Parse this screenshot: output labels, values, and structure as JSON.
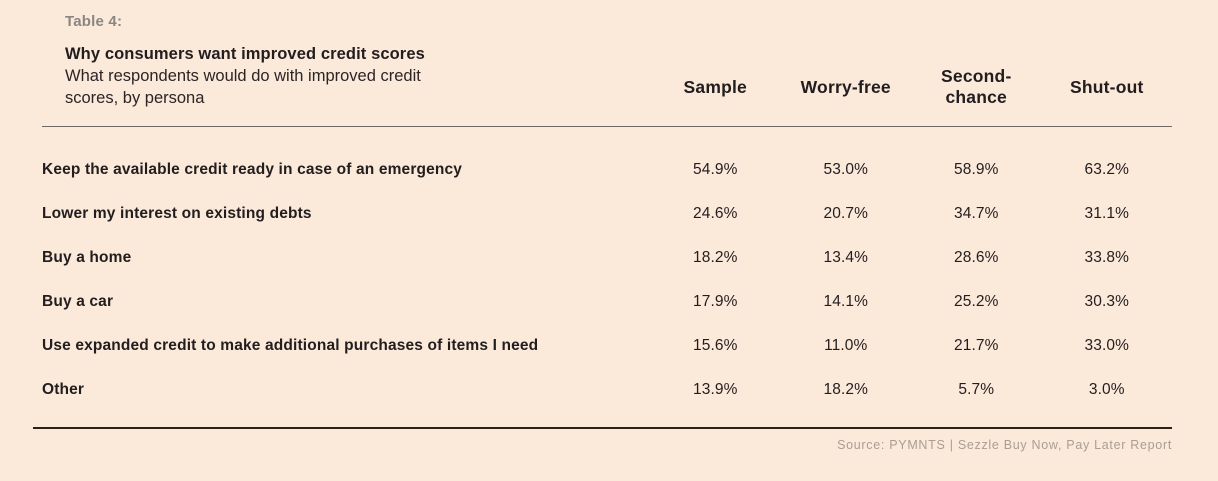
{
  "table": {
    "label": "Table 4:",
    "title": "Why consumers want improved credit scores",
    "subtitle": "What respondents would do with improved credit scores, by persona",
    "columns": [
      "Sample",
      "Worry-free",
      "Second-\nchance",
      "Shut-out"
    ],
    "rows": [
      {
        "label": "Keep the available credit ready in case of an emergency",
        "values": [
          "54.9%",
          "53.0%",
          "58.9%",
          "63.2%"
        ]
      },
      {
        "label": "Lower my interest on existing debts",
        "values": [
          "24.6%",
          "20.7%",
          "34.7%",
          "31.1%"
        ]
      },
      {
        "label": "Buy a home",
        "values": [
          "18.2%",
          "13.4%",
          "28.6%",
          "33.8%"
        ]
      },
      {
        "label": "Buy a car",
        "values": [
          "17.9%",
          "14.1%",
          "25.2%",
          "30.3%"
        ]
      },
      {
        "label": "Use expanded credit to make additional purchases of items I need",
        "values": [
          "15.6%",
          "11.0%",
          "21.7%",
          "33.0%"
        ]
      },
      {
        "label": "Other",
        "values": [
          "13.9%",
          "18.2%",
          "5.7%",
          "3.0%"
        ]
      }
    ]
  },
  "footer": {
    "source": "Source: PYMNTS | Sezzle Buy Now, Pay Later Report"
  },
  "colors": {
    "background": "#fbe9da",
    "text": "#221d1e",
    "table_label_gray": "#8b8682",
    "source_gray": "#a99e93",
    "rule_top": "#6f6a66",
    "rule_bottom": "#2b2118"
  },
  "chart_data": {
    "type": "table",
    "title": "Why consumers want improved credit scores",
    "subtitle": "What respondents would do with improved credit scores, by persona",
    "columns": [
      "Sample",
      "Worry-free",
      "Second-chance",
      "Shut-out"
    ],
    "row_labels": [
      "Keep the available credit ready in case of an emergency",
      "Lower my interest on existing debts",
      "Buy a home",
      "Buy a car",
      "Use expanded credit to make additional purchases of items I need",
      "Other"
    ],
    "values_percent": [
      [
        54.9,
        53.0,
        58.9,
        63.2
      ],
      [
        24.6,
        20.7,
        34.7,
        31.1
      ],
      [
        18.2,
        13.4,
        28.6,
        33.8
      ],
      [
        17.9,
        14.1,
        25.2,
        30.3
      ],
      [
        15.6,
        11.0,
        21.7,
        33.0
      ],
      [
        13.9,
        18.2,
        5.7,
        3.0
      ]
    ],
    "source": "Source: PYMNTS | Sezzle Buy Now, Pay Later Report"
  }
}
